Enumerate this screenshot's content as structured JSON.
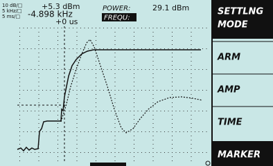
{
  "header": {
    "scales": [
      "10 dB/□",
      "5 kHz/□",
      "5 ms/□"
    ],
    "level": "+5.3 dBm",
    "frequency": "-4.898 kHz",
    "time": "+0 us",
    "power_label": "POWER:",
    "power_value": "29.1 dBm",
    "freq_button": "FREQU:"
  },
  "softkeys": [
    [
      "SETTLNG",
      "MODE"
    ],
    [
      "ARM"
    ],
    [
      "AMP"
    ],
    [
      "TIME"
    ],
    [
      "MARKER"
    ]
  ]
}
